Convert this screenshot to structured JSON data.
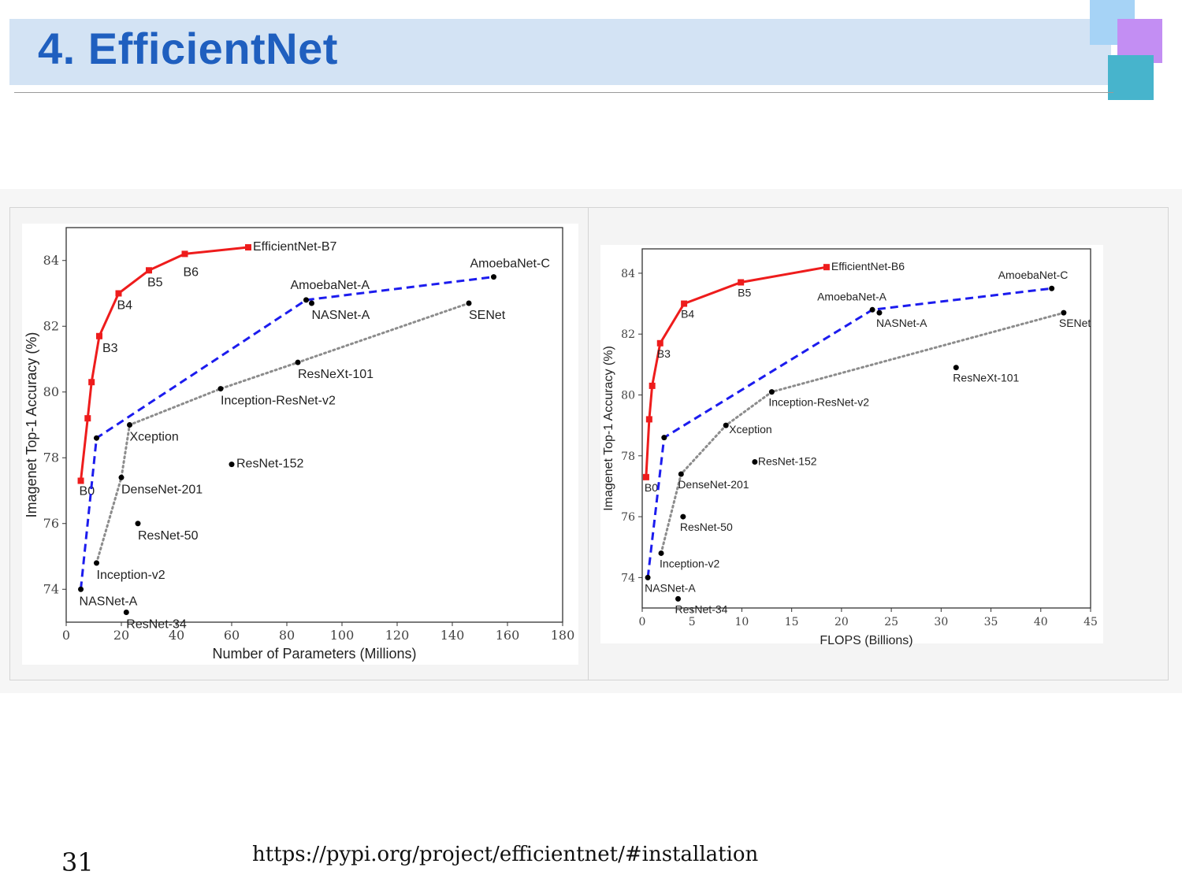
{
  "slide": {
    "title": "4. EfficientNet",
    "page_number": "31",
    "url": "https://pypi.org/project/efficientnet/#installation",
    "colors": {
      "title_text": "#1f5fbf",
      "title_bar": "#d3e3f4",
      "deco_1": "#a6d3f6",
      "deco_2": "#c38ef3",
      "deco_3": "#47b4cc"
    }
  },
  "chart_data": [
    {
      "type": "scatter",
      "xlabel": "Number of Parameters (Millions)",
      "ylabel": "Imagenet Top-1 Accuracy (%)",
      "xlim": [
        0,
        180
      ],
      "ylim": [
        73,
        85
      ],
      "xticks": [
        0,
        20,
        40,
        60,
        80,
        100,
        120,
        140,
        160,
        180
      ],
      "yticks": [
        74,
        76,
        78,
        80,
        82,
        84
      ],
      "grid": false,
      "series": [
        {
          "style": "efficientnet",
          "color": "#ee1c1c",
          "points": [
            [
              5.3,
              77.3,
              "B0"
            ],
            [
              7.8,
              79.2,
              ""
            ],
            [
              9.2,
              80.3,
              ""
            ],
            [
              12,
              81.7,
              "B3"
            ],
            [
              19,
              83.0,
              "B4"
            ],
            [
              30,
              83.7,
              "B5"
            ],
            [
              43,
              84.2,
              "B6"
            ],
            [
              66,
              84.4,
              "EfficientNet-B7"
            ]
          ]
        },
        {
          "style": "nas",
          "color": "#1c1cee",
          "points": [
            [
              5.3,
              74.0,
              "NASNet-A"
            ],
            [
              11,
              78.6,
              ""
            ],
            [
              87,
              82.8,
              "AmoebaNet-A"
            ],
            [
              155,
              83.5,
              "AmoebaNet-C"
            ]
          ]
        },
        {
          "style": "manual",
          "color": "#8c8c8c",
          "points": [
            [
              11,
              74.8,
              "Inception-v2"
            ],
            [
              20,
              77.4,
              "DenseNet-201"
            ],
            [
              23,
              79.0,
              "Xception"
            ],
            [
              56,
              80.1,
              "Inception-ResNet-v2"
            ],
            [
              84,
              80.9,
              "ResNeXt-101"
            ],
            [
              146,
              82.7,
              "SENet"
            ]
          ]
        },
        {
          "style": "points",
          "color": "#000000",
          "points": [
            [
              21.8,
              73.3,
              "ResNet-34"
            ],
            [
              26,
              76.0,
              "ResNet-50"
            ],
            [
              60,
              77.8,
              "ResNet-152"
            ],
            [
              89,
              82.7,
              "NASNet-A"
            ]
          ]
        }
      ]
    },
    {
      "type": "scatter",
      "xlabel": "FLOPS (Billions)",
      "ylabel": "Imagenet Top-1 Accuracy (%)",
      "xlim": [
        0,
        45
      ],
      "ylim": [
        73,
        84.8
      ],
      "xticks": [
        0,
        5,
        10,
        15,
        20,
        25,
        30,
        35,
        40,
        45
      ],
      "yticks": [
        74,
        76,
        78,
        80,
        82,
        84
      ],
      "grid": false,
      "series": [
        {
          "style": "efficientnet",
          "color": "#ee1c1c",
          "points": [
            [
              0.39,
              77.3,
              "B0"
            ],
            [
              0.7,
              79.2,
              ""
            ],
            [
              1.0,
              80.3,
              ""
            ],
            [
              1.8,
              81.7,
              "B3"
            ],
            [
              4.2,
              83.0,
              "B4"
            ],
            [
              9.9,
              83.7,
              "B5"
            ],
            [
              18.5,
              84.2,
              "EfficientNet-B6"
            ]
          ]
        },
        {
          "style": "nas",
          "color": "#1c1cee",
          "points": [
            [
              0.56,
              74.0,
              "NASNet-A"
            ],
            [
              2.2,
              78.6,
              ""
            ],
            [
              23.1,
              82.8,
              "AmoebaNet-A"
            ],
            [
              41.1,
              83.5,
              "AmoebaNet-C"
            ]
          ]
        },
        {
          "style": "manual",
          "color": "#8c8c8c",
          "points": [
            [
              1.9,
              74.8,
              "Inception-v2"
            ],
            [
              3.9,
              77.4,
              "DenseNet-201"
            ],
            [
              8.4,
              79.0,
              "Xception"
            ],
            [
              13,
              80.1,
              "Inception-ResNet-v2"
            ],
            [
              42.3,
              82.7,
              "SENet"
            ]
          ]
        },
        {
          "style": "points",
          "color": "#000000",
          "points": [
            [
              3.6,
              73.3,
              "ResNet-34"
            ],
            [
              4.1,
              76.0,
              "ResNet-50"
            ],
            [
              11.3,
              77.8,
              "ResNet-152"
            ],
            [
              23.8,
              82.7,
              "NASNet-A"
            ],
            [
              31.5,
              80.9,
              "ResNeXt-101"
            ]
          ]
        }
      ]
    }
  ]
}
